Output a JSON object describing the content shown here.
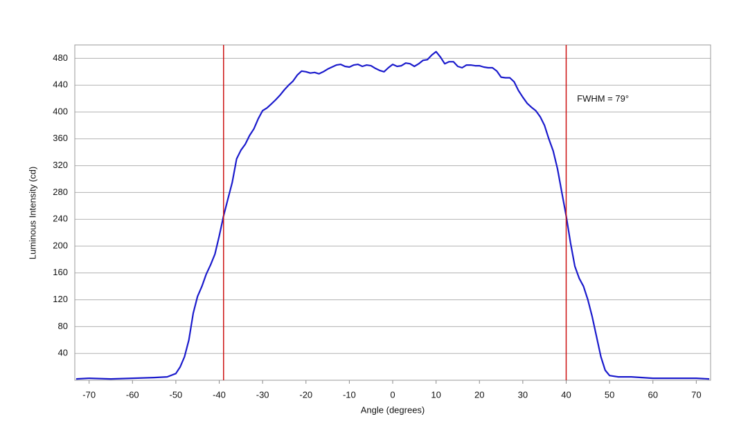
{
  "chart_data": {
    "type": "line",
    "xlabel": "Angle (degrees)",
    "ylabel": "Luminous Intensity (cd)",
    "x": [
      -73,
      -70,
      -65,
      -60,
      -55,
      -52,
      -50,
      -49,
      -48,
      -47,
      -46,
      -45,
      -44,
      -43,
      -42,
      -41,
      -40,
      -39,
      -38,
      -37,
      -36,
      -35,
      -34,
      -33,
      -32,
      -31,
      -30,
      -29,
      -28,
      -27,
      -26,
      -25,
      -24,
      -23,
      -22,
      -21,
      -20,
      -19,
      -18,
      -17,
      -16,
      -15,
      -14,
      -13,
      -12,
      -11,
      -10,
      -9,
      -8,
      -7,
      -6,
      -5,
      -4,
      -3,
      -2,
      -1,
      0,
      1,
      2,
      3,
      4,
      5,
      6,
      7,
      8,
      9,
      10,
      11,
      12,
      13,
      14,
      15,
      16,
      17,
      18,
      19,
      20,
      21,
      22,
      23,
      24,
      25,
      26,
      27,
      28,
      29,
      30,
      31,
      32,
      33,
      34,
      35,
      36,
      37,
      38,
      39,
      40,
      41,
      42,
      43,
      44,
      45,
      46,
      47,
      48,
      49,
      50,
      52,
      55,
      60,
      65,
      70,
      73
    ],
    "values": [
      2,
      3,
      2,
      3,
      4,
      5,
      10,
      20,
      35,
      60,
      100,
      125,
      140,
      158,
      172,
      188,
      215,
      245,
      270,
      295,
      330,
      343,
      352,
      365,
      375,
      390,
      402,
      406,
      412,
      418,
      425,
      433,
      440,
      446,
      455,
      461,
      460,
      458,
      459,
      457,
      460,
      464,
      467,
      470,
      471,
      468,
      467,
      470,
      471,
      468,
      470,
      469,
      465,
      462,
      460,
      466,
      471,
      468,
      469,
      473,
      472,
      468,
      472,
      477,
      478,
      485,
      490,
      482,
      472,
      475,
      475,
      468,
      466,
      470,
      470,
      469,
      469,
      467,
      466,
      466,
      461,
      452,
      451,
      451,
      445,
      432,
      422,
      413,
      407,
      402,
      393,
      380,
      360,
      342,
      315,
      280,
      245,
      205,
      170,
      152,
      140,
      120,
      95,
      65,
      35,
      15,
      7,
      5,
      5,
      3,
      3,
      3,
      2
    ],
    "color": "#1a1acc",
    "vlines": [
      -39,
      40
    ],
    "vline_color": "#cc1111",
    "annotation": {
      "text": "FWHM = 79°",
      "x": 42.5,
      "y": 419
    },
    "xlim": [
      -73.3,
      73.3
    ],
    "xticks": [
      -70,
      -60,
      -50,
      -40,
      -30,
      -20,
      -10,
      0,
      10,
      20,
      30,
      40,
      50,
      60,
      70
    ],
    "ylim": [
      0,
      500
    ],
    "yticks": [
      40,
      80,
      120,
      160,
      200,
      240,
      280,
      320,
      360,
      400,
      440,
      480
    ],
    "grid": true
  }
}
